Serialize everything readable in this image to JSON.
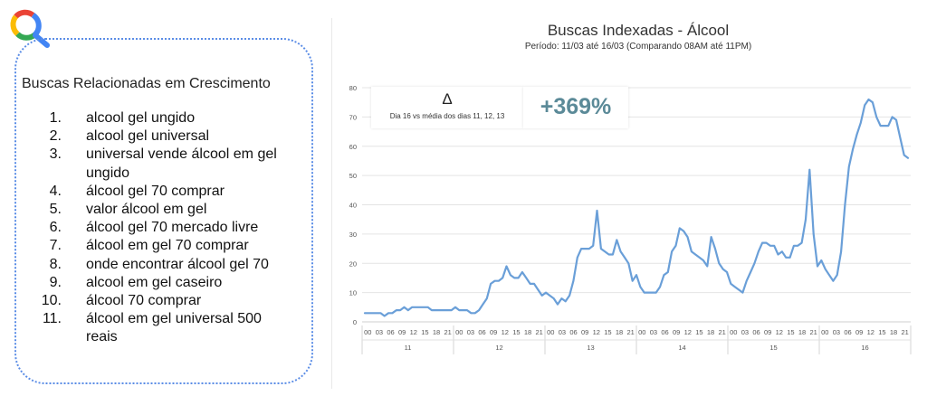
{
  "colors": {
    "line": "#6a9fd8",
    "accent": "#5b8a98",
    "panel_border": "#5b8de6"
  },
  "logo": {
    "icon": "google-search-logo-icon"
  },
  "related": {
    "title": "Buscas Relacionadas em Crescimento",
    "items": [
      {
        "num": "1.",
        "text": "alcool gel ungido"
      },
      {
        "num": "2.",
        "text": "alcool gel universal"
      },
      {
        "num": "3.",
        "text": "universal vende álcool em gel ungido"
      },
      {
        "num": "4.",
        "text": "álcool gel 70 comprar"
      },
      {
        "num": "5.",
        "text": "valor álcool em gel"
      },
      {
        "num": "6.",
        "text": "álcool gel 70 mercado livre"
      },
      {
        "num": "7.",
        "text": "álcool em gel 70 comprar"
      },
      {
        "num": "8.",
        "text": "onde encontrar álcool gel 70"
      },
      {
        "num": "9.",
        "text": "alcool em gel caseiro"
      },
      {
        "num": "10.",
        "text": "álcool 70 comprar"
      },
      {
        "num": "11.",
        "text": "álcool em gel universal 500 reais"
      }
    ]
  },
  "callout": {
    "delta_symbol": "Δ",
    "delta_desc": "Dia 16 vs média dos dias 11, 12, 13",
    "percent": "+369%"
  },
  "chart_data": {
    "type": "line",
    "title": "Buscas Indexadas - Álcool",
    "subtitle": "Período: 11/03 até 16/03 (Comparando 08AM até 11PM)",
    "ylim": [
      0,
      80
    ],
    "yticks": [
      0,
      10,
      20,
      30,
      40,
      50,
      60,
      70,
      80
    ],
    "hour_ticks": [
      "00",
      "03",
      "06",
      "09",
      "12",
      "15",
      "18",
      "21",
      "00",
      "03",
      "06",
      "09",
      "12",
      "15",
      "18",
      "21",
      "00",
      "03",
      "06",
      "09",
      "12",
      "15",
      "18",
      "21",
      "00",
      "03",
      "06",
      "09",
      "12",
      "15",
      "18",
      "21",
      "00",
      "03",
      "06",
      "09",
      "12",
      "15",
      "18",
      "21",
      "00",
      "03",
      "06",
      "09",
      "12",
      "15",
      "18",
      "21"
    ],
    "days": [
      "11",
      "12",
      "13",
      "14",
      "15",
      "16"
    ],
    "grid": true,
    "legend": "none",
    "series": [
      {
        "values": [
          3,
          3,
          3,
          3,
          3,
          2,
          3,
          3,
          4,
          4,
          5,
          4,
          5,
          5,
          5,
          5,
          5,
          4,
          4,
          4,
          4,
          4,
          4,
          5,
          4,
          4,
          4,
          3,
          3,
          4,
          6,
          8,
          13,
          14,
          14,
          15,
          19,
          16,
          15,
          15,
          17,
          15,
          13,
          13,
          11,
          9,
          10,
          9,
          8,
          6,
          8,
          7,
          9,
          14,
          22,
          25,
          25,
          25,
          26,
          38,
          25,
          24,
          23,
          23,
          28,
          24,
          22,
          20,
          14,
          16,
          12,
          10,
          10,
          10,
          10,
          12,
          16,
          17,
          24,
          26,
          32,
          31,
          29,
          24,
          23,
          22,
          21,
          19,
          29,
          25,
          20,
          18,
          17,
          13,
          12,
          11,
          10,
          14,
          17,
          20,
          24,
          27,
          27,
          26,
          26,
          23,
          24,
          22,
          22,
          26,
          26,
          27,
          35,
          52,
          30,
          19,
          21,
          18,
          16,
          14,
          16,
          24,
          40,
          53,
          59,
          64,
          68,
          74,
          76,
          75,
          70,
          67,
          67,
          67,
          70,
          69,
          63,
          57,
          56
        ]
      }
    ]
  }
}
